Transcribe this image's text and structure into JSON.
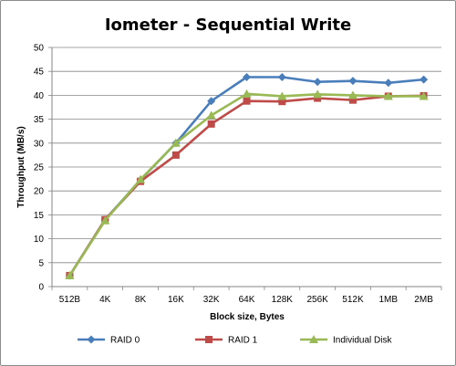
{
  "chart_data": {
    "type": "line",
    "title": "Iometer - Sequential Write",
    "xlabel": "Block size, Bytes",
    "ylabel": "Throughput  (MB/s)",
    "ylim": [
      0,
      50
    ],
    "yticks": [
      0,
      5,
      10,
      15,
      20,
      25,
      30,
      35,
      40,
      45,
      50
    ],
    "grid": true,
    "legend_position": "bottom",
    "categories": [
      "512B",
      "4K",
      "8K",
      "16K",
      "32K",
      "64K",
      "128K",
      "256K",
      "512K",
      "1MB",
      "2MB"
    ],
    "series": [
      {
        "name": "RAID 0",
        "color": "#4a7ebb",
        "marker": "diamond",
        "values": [
          2.3,
          14.0,
          22.3,
          30.0,
          38.8,
          43.8,
          43.8,
          42.8,
          43.0,
          42.6,
          43.3
        ]
      },
      {
        "name": "RAID 1",
        "color": "#be4b48",
        "marker": "square",
        "values": [
          2.3,
          14.0,
          22.0,
          27.5,
          34.0,
          38.8,
          38.7,
          39.4,
          39.0,
          39.8,
          39.9
        ]
      },
      {
        "name": "Individual Disk",
        "color": "#98b954",
        "marker": "triangle",
        "values": [
          2.3,
          13.8,
          22.4,
          30.0,
          35.8,
          40.3,
          39.8,
          40.2,
          40.0,
          39.8,
          39.8
        ]
      }
    ]
  }
}
